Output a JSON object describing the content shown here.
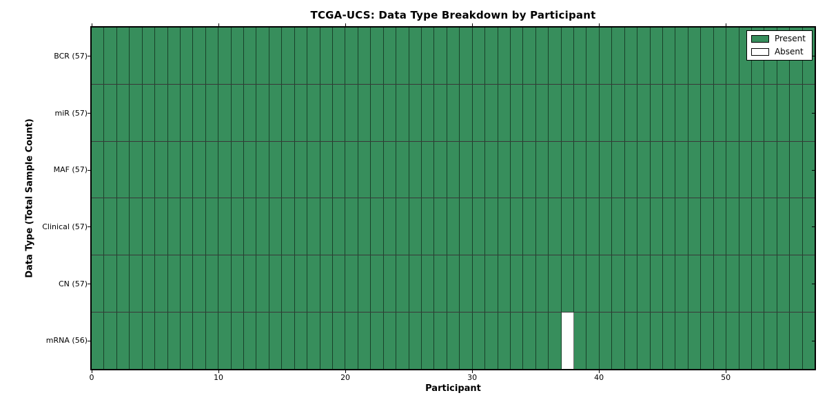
{
  "chart_data": {
    "type": "heatmap",
    "title": "TCGA-UCS: Data Type Breakdown by Participant",
    "xlabel": "Participant",
    "ylabel": "Data Type (Total Sample Count)",
    "x_range": [
      0,
      57
    ],
    "x_ticks": [
      0,
      10,
      20,
      30,
      40,
      50
    ],
    "n_participants": 57,
    "rows": [
      {
        "name": "BCR",
        "label": "BCR (57)",
        "count": 57,
        "absent_participants": []
      },
      {
        "name": "miR",
        "label": "miR (57)",
        "count": 57,
        "absent_participants": []
      },
      {
        "name": "MAF",
        "label": "MAF (57)",
        "count": 57,
        "absent_participants": []
      },
      {
        "name": "Clinical",
        "label": "Clinical (57)",
        "count": 57,
        "absent_participants": []
      },
      {
        "name": "CN",
        "label": "CN (57)",
        "count": 57,
        "absent_participants": []
      },
      {
        "name": "mRNA",
        "label": "mRNA (56)",
        "count": 56,
        "absent_participants": [
          37
        ]
      }
    ],
    "legend": [
      {
        "label": "Present",
        "value": "present"
      },
      {
        "label": "Absent",
        "value": "absent"
      }
    ],
    "colors": {
      "present": "#378e5c",
      "absent": "#ffffff",
      "cell_border": "#000000",
      "spine": "#000000",
      "text": "#000000",
      "background": "#ffffff"
    },
    "legend_position": "upper-right",
    "grid": "cell-borders"
  }
}
